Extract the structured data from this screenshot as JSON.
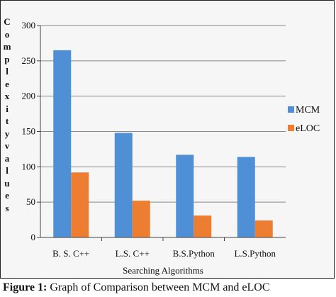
{
  "caption": {
    "label": "Figure 1:",
    "text": " Graph of Comparison between MCM and eLOC"
  },
  "chart_data": {
    "type": "bar",
    "categories": [
      "B. S. C++",
      "L.S. C++",
      "B.S.Python",
      "L.S.Python"
    ],
    "series": [
      {
        "name": "MCM",
        "values": [
          265,
          148,
          117,
          114
        ],
        "color": "#4f8fd6"
      },
      {
        "name": "eLOC",
        "values": [
          92,
          52,
          31,
          24
        ],
        "color": "#ed7d31"
      }
    ],
    "xlabel": "Searching Algorithms",
    "ylabel": "Complexity values",
    "ylim": [
      0,
      300
    ],
    "yticks": [
      0,
      50,
      100,
      150,
      200,
      250,
      300
    ],
    "grid": true,
    "legend": "right"
  }
}
